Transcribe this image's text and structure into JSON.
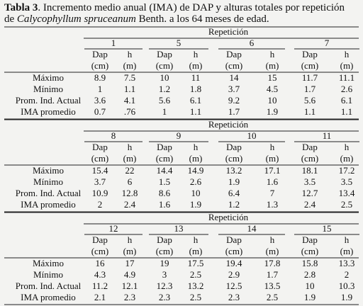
{
  "caption": {
    "label": "Tabla 3",
    "line1": ". Incremento medio anual (IMA) de DAP y alturas totales por repetición",
    "line2_start": "de ",
    "species": "Calycophyllum spruceanum",
    "line2_end": " Benth. a los 64 meses de edad."
  },
  "blocks": [
    {
      "header": "Repetición",
      "reps": [
        "1",
        "5",
        "6",
        "7"
      ],
      "columns": [
        {
          "name": "Dap",
          "unit": "(cm)"
        },
        {
          "name": "h",
          "unit": "(m)"
        },
        {
          "name": "Dap",
          "unit": "(cm)"
        },
        {
          "name": "h",
          "unit": "(m)"
        },
        {
          "name": "Dap",
          "unit": "(cm)"
        },
        {
          "name": "h",
          "unit": "(m)"
        },
        {
          "name": "Dap",
          "unit": "(cm)"
        },
        {
          "name": "h",
          "unit": "(m)"
        }
      ],
      "rows": [
        {
          "label": "Máximo",
          "values": [
            "8.9",
            "7.5",
            "10",
            "11",
            "14",
            "15",
            "11.7",
            "11.1"
          ]
        },
        {
          "label": "Mínimo",
          "values": [
            "1",
            "1.1",
            "1.2",
            "1.8",
            "3.7",
            "4.5",
            "1.7",
            "2.6"
          ]
        },
        {
          "label": "Prom. Ind. Actual",
          "values": [
            "3.6",
            "4.1",
            "5.6",
            "6.1",
            "9.2",
            "10",
            "5.6",
            "6.1"
          ]
        },
        {
          "label": "IMA promedio",
          "values": [
            "0.7",
            ".76",
            "1",
            "1.1",
            "1.7",
            "1.9",
            "1.1",
            "1.1"
          ]
        }
      ]
    },
    {
      "header": "Repetición",
      "reps": [
        "8",
        "9",
        "10",
        "11"
      ],
      "columns": [
        {
          "name": "Dap",
          "unit": "(cm)"
        },
        {
          "name": "h",
          "unit": "(m)"
        },
        {
          "name": "Dap",
          "unit": "(cm)"
        },
        {
          "name": "h",
          "unit": "(m)"
        },
        {
          "name": "Dap",
          "unit": "(cm)"
        },
        {
          "name": "h",
          "unit": "(m)"
        },
        {
          "name": "Dap",
          "unit": "(cm)"
        },
        {
          "name": "h",
          "unit": "(m)"
        }
      ],
      "rows": [
        {
          "label": "Máximo",
          "values": [
            "15.4",
            "22",
            "14.4",
            "14.9",
            "13.2",
            "17.1",
            "18.1",
            "17.2"
          ]
        },
        {
          "label": "Mínimo",
          "values": [
            "3.7",
            "6",
            "1.5",
            "2.6",
            "1.9",
            "1.6",
            "3.5",
            "3.5"
          ]
        },
        {
          "label": "Prom. Ind. Actual",
          "values": [
            "10.9",
            "12.8",
            "8.6",
            "10",
            "6.4",
            "7",
            "12.7",
            "13.4"
          ]
        },
        {
          "label": "IMA promedio",
          "values": [
            "2",
            "2.4",
            "1.6",
            "1.9",
            "1.2",
            "1.3",
            "2.4",
            "2.5"
          ]
        }
      ]
    },
    {
      "header": "Repetición",
      "reps": [
        "12",
        "13",
        "14",
        "15"
      ],
      "columns": [
        {
          "name": "Dap",
          "unit": "(cm)"
        },
        {
          "name": "h",
          "unit": "(m)"
        },
        {
          "name": "Dap",
          "unit": "(cm)"
        },
        {
          "name": "h",
          "unit": "(m)"
        },
        {
          "name": "Dap",
          "unit": "(cm)"
        },
        {
          "name": "h",
          "unit": "(m)"
        },
        {
          "name": "Dap",
          "unit": "(cm)"
        },
        {
          "name": "h",
          "unit": "(m)"
        }
      ],
      "rows": [
        {
          "label": "Máximo",
          "values": [
            "16",
            "17",
            "19",
            "17.5",
            "19.4",
            "17.8",
            "15.8",
            "13.3"
          ]
        },
        {
          "label": "Mínimo",
          "values": [
            "4.3",
            "4.9",
            "3",
            "2.5",
            "2.9",
            "1.7",
            "2.8",
            "2"
          ]
        },
        {
          "label": "Prom. Ind. Actual",
          "values": [
            "11.2",
            "12.1",
            "12.3",
            "13.2",
            "12.5",
            "13.5",
            "10",
            "10.3"
          ]
        },
        {
          "label": "IMA promedio",
          "values": [
            "2.1",
            "2.3",
            "2.3",
            "2.5",
            "2.3",
            "2.5",
            "1.9",
            "1.9"
          ]
        }
      ]
    }
  ]
}
